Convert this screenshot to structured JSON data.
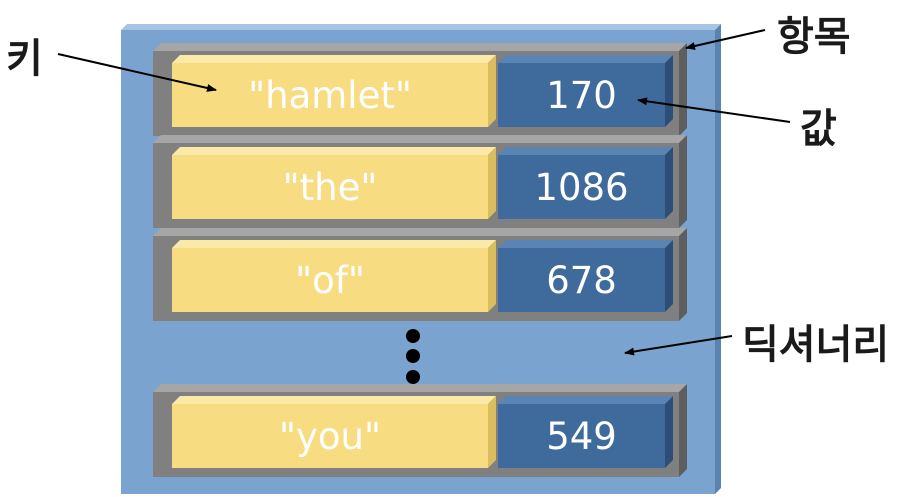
{
  "labels": {
    "key": "키",
    "entry": "항목",
    "value": "값",
    "dictionary": "딕셔너리"
  },
  "entries": [
    {
      "key": "\"hamlet\"",
      "value": "170"
    },
    {
      "key": "\"the\"",
      "value": "1086"
    },
    {
      "key": "\"of\"",
      "value": "678"
    },
    {
      "key": "\"you\"",
      "value": "549"
    }
  ],
  "colors": {
    "dictionary_fill": "#7aa3cf",
    "entry_frame": "#808080",
    "key_fill": "#f8dc82",
    "value_fill": "#3f6a9c"
  }
}
